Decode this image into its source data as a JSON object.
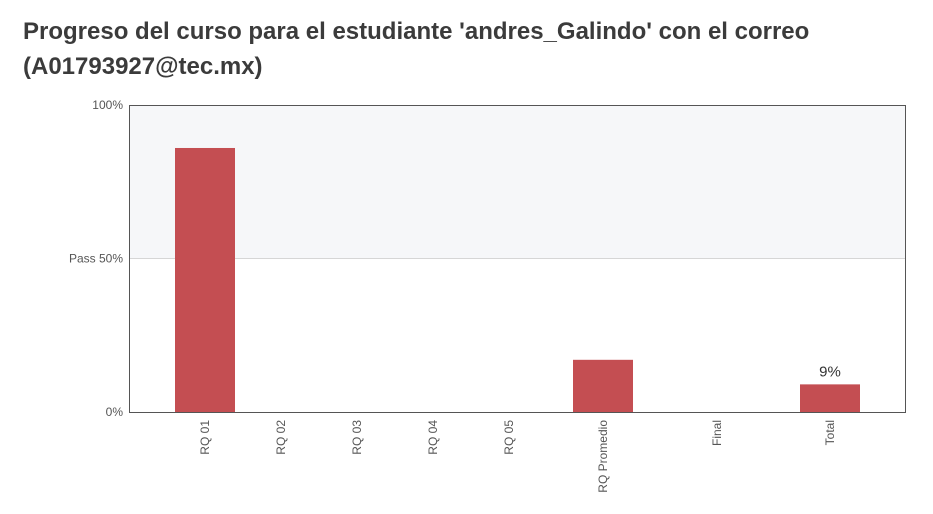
{
  "page": {
    "title": "Progreso del curso para el estudiante 'andres_Galindo' con el correo (A01793927@tec.mx)"
  },
  "chart_data": {
    "type": "bar",
    "title": "Progreso del curso para el estudiante 'andres_Galindo' con el correo (A01793927@tec.mx)",
    "categories": [
      "RQ 01",
      "RQ 02",
      "RQ 03",
      "RQ 04",
      "RQ 05",
      "RQ Promedio",
      "Final",
      "Total"
    ],
    "values": [
      86,
      0,
      0,
      0,
      0,
      17,
      0,
      9
    ],
    "data_labels": [
      "",
      "",
      "",
      "",
      "",
      "",
      "",
      "9%"
    ],
    "ylim": [
      0,
      100
    ],
    "yticks": [
      {
        "value": 0,
        "label": "0%"
      },
      {
        "value": 50,
        "label": "Pass 50%"
      },
      {
        "value": 100,
        "label": "100%"
      }
    ],
    "pass_threshold": 50,
    "bar_color": "#c44e52",
    "pass_region_color": "#f6f7f9",
    "xlabel": "",
    "ylabel": "",
    "grid": false
  }
}
